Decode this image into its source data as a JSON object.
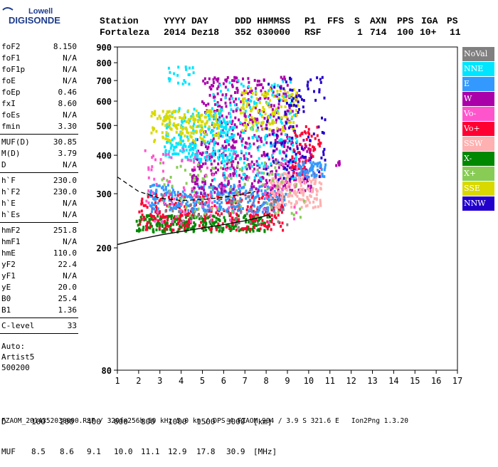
{
  "brand": {
    "line1": "Lowell",
    "line2": "DIGISONDE"
  },
  "header": {
    "labels": [
      "Station",
      "YYYY DAY",
      "DDD HHMMSS",
      "P1",
      "FFS",
      "S",
      "AXN",
      "PPS",
      "IGA",
      "PS"
    ],
    "values": [
      "Fortaleza",
      "2014 Dez18",
      "352 030000",
      "RSF",
      "",
      "1",
      "714",
      "100",
      "10+",
      "11"
    ]
  },
  "params_groups": [
    [
      {
        "k": "foF2",
        "v": "8.150"
      },
      {
        "k": "foF1",
        "v": "N/A"
      },
      {
        "k": "foF1p",
        "v": "N/A"
      },
      {
        "k": "foE",
        "v": "N/A"
      },
      {
        "k": "foEp",
        "v": "0.46"
      },
      {
        "k": "fxI",
        "v": "8.60"
      },
      {
        "k": "foEs",
        "v": "N/A"
      },
      {
        "k": "fmin",
        "v": "3.30"
      }
    ],
    [
      {
        "k": "MUF(D)",
        "v": "30.85"
      },
      {
        "k": "M(D)",
        "v": "3.79"
      },
      {
        "k": "D",
        "v": "N/A"
      }
    ],
    [
      {
        "k": "h`F",
        "v": "230.0"
      },
      {
        "k": "h`F2",
        "v": "230.0"
      },
      {
        "k": "h`E",
        "v": "N/A"
      },
      {
        "k": "h`Es",
        "v": "N/A"
      }
    ],
    [
      {
        "k": "hmF2",
        "v": "251.8"
      },
      {
        "k": "hmF1",
        "v": "N/A"
      },
      {
        "k": "hmE",
        "v": "110.0"
      },
      {
        "k": "yF2",
        "v": "22.4"
      },
      {
        "k": "yF1",
        "v": "N/A"
      },
      {
        "k": "yE",
        "v": "20.0"
      },
      {
        "k": "B0",
        "v": "25.4"
      },
      {
        "k": "B1",
        "v": "1.36"
      }
    ],
    [
      {
        "k": "C-level",
        "v": "33"
      }
    ]
  ],
  "autoscale": {
    "line1": "Auto:",
    "line2": "Artist5",
    "line3": "500200"
  },
  "legend": [
    {
      "label": "NoVal",
      "color": "#808080",
      "text": "#ffffff"
    },
    {
      "label": "NNE",
      "color": "#00e5ff",
      "text": "#ffffff"
    },
    {
      "label": "E",
      "color": "#3399ff",
      "text": "#ffffff"
    },
    {
      "label": "W",
      "color": "#aa00aa",
      "text": "#ffffff"
    },
    {
      "label": "Vo-",
      "color": "#ff55cc",
      "text": "#ffffff"
    },
    {
      "label": "Vo+",
      "color": "#ff0033",
      "text": "#ffffff"
    },
    {
      "label": "SSW",
      "color": "#ffb0b0",
      "text": "#ffffff"
    },
    {
      "label": "X-",
      "color": "#008800",
      "text": "#ffffff"
    },
    {
      "label": "X+",
      "color": "#88cc55",
      "text": "#ffffff"
    },
    {
      "label": "SSE",
      "color": "#d9d900",
      "text": "#ffffff"
    },
    {
      "label": "NNW",
      "color": "#2200cc",
      "text": "#ffffff"
    }
  ],
  "footer": {
    "d_label": "D",
    "d_values": [
      "100",
      "200",
      "400",
      "600",
      "800",
      "1000",
      "1500",
      "3000"
    ],
    "d_unit": "[km]",
    "muf_label": "MUF",
    "muf_values": [
      "8.5",
      "8.6",
      "9.1",
      "10.0",
      "11.1",
      "12.9",
      "17.8",
      "30.9"
    ],
    "muf_unit": "[MHz]",
    "info": "FZAOM_2014352030000.RSF / 320fx256h 50 kHz 5.0 km / DPS-4 FZAOM 904 / 3.9 S 321.6 E   Ion2Png 1.3.20"
  },
  "chart_data": {
    "type": "scatter",
    "title": "",
    "xlabel": "",
    "ylabel": "",
    "xlim": [
      1,
      17
    ],
    "ylim": [
      80,
      900
    ],
    "y_scale": "log",
    "x_ticks": [
      1,
      2,
      3,
      4,
      5,
      6,
      7,
      8,
      9,
      10,
      11,
      12,
      13,
      14,
      15,
      16,
      17
    ],
    "y_ticks": [
      80,
      200,
      300,
      400,
      500,
      600,
      700,
      800,
      900
    ],
    "grid": false,
    "legend_position": "right",
    "clusters": [
      {
        "series": "X-",
        "x": [
          1.9,
          8.2
        ],
        "y": [
          225,
          255
        ],
        "n": 260
      },
      {
        "series": "Vo+",
        "x": [
          2.0,
          8.8
        ],
        "y": [
          228,
          300
        ],
        "n": 320
      },
      {
        "series": "E",
        "x": [
          2.5,
          9.0
        ],
        "y": [
          260,
          320
        ],
        "n": 300
      },
      {
        "series": "W",
        "x": [
          4.5,
          10.2
        ],
        "y": [
          300,
          450
        ],
        "n": 380
      },
      {
        "series": "W",
        "x": [
          5.0,
          9.5
        ],
        "y": [
          450,
          720
        ],
        "n": 260
      },
      {
        "series": "NNE",
        "x": [
          3.2,
          6.5
        ],
        "y": [
          380,
          570
        ],
        "n": 220
      },
      {
        "series": "NNE",
        "x": [
          5.5,
          9.5
        ],
        "y": [
          330,
          700
        ],
        "n": 200
      },
      {
        "series": "SSE",
        "x": [
          2.6,
          5.8
        ],
        "y": [
          440,
          560
        ],
        "n": 160
      },
      {
        "series": "SSE",
        "x": [
          6.8,
          9.5
        ],
        "y": [
          480,
          660
        ],
        "n": 120
      },
      {
        "series": "SSW",
        "x": [
          8.2,
          10.6
        ],
        "y": [
          270,
          350
        ],
        "n": 180
      },
      {
        "series": "Vo-",
        "x": [
          2.3,
          9.5
        ],
        "y": [
          240,
          420
        ],
        "n": 120
      },
      {
        "series": "NNW",
        "x": [
          8.0,
          10.8
        ],
        "y": [
          330,
          720
        ],
        "n": 110
      },
      {
        "series": "X+",
        "x": [
          3.0,
          9.8
        ],
        "y": [
          250,
          380
        ],
        "n": 90
      },
      {
        "series": "NNE",
        "x": [
          3.4,
          4.6
        ],
        "y": [
          680,
          780
        ],
        "n": 20
      },
      {
        "series": "Vo+",
        "x": [
          9.2,
          10.6
        ],
        "y": [
          340,
          500
        ],
        "n": 60
      },
      {
        "series": "W",
        "x": [
          11.3,
          11.5
        ],
        "y": [
          370,
          385
        ],
        "n": 6
      },
      {
        "series": "E",
        "x": [
          9.5,
          10.8
        ],
        "y": [
          340,
          380
        ],
        "n": 60
      },
      {
        "series": "NoVal",
        "x": [
          2.0,
          9.5
        ],
        "y": [
          230,
          300
        ],
        "n": 40
      }
    ],
    "profile_upper": {
      "x": [
        1.0,
        2.0,
        3.0,
        4.0,
        5.0,
        6.0,
        7.0,
        7.5
      ],
      "y": [
        340,
        305,
        290,
        285,
        287,
        292,
        300,
        305
      ]
    },
    "profile_lower": {
      "x": [
        1.0,
        2.0,
        3.0,
        4.0,
        5.0,
        6.0,
        7.0,
        7.8,
        8.1,
        8.2
      ],
      "y": [
        205,
        213,
        220,
        226,
        232,
        238,
        245,
        252,
        256,
        251
      ]
    }
  }
}
